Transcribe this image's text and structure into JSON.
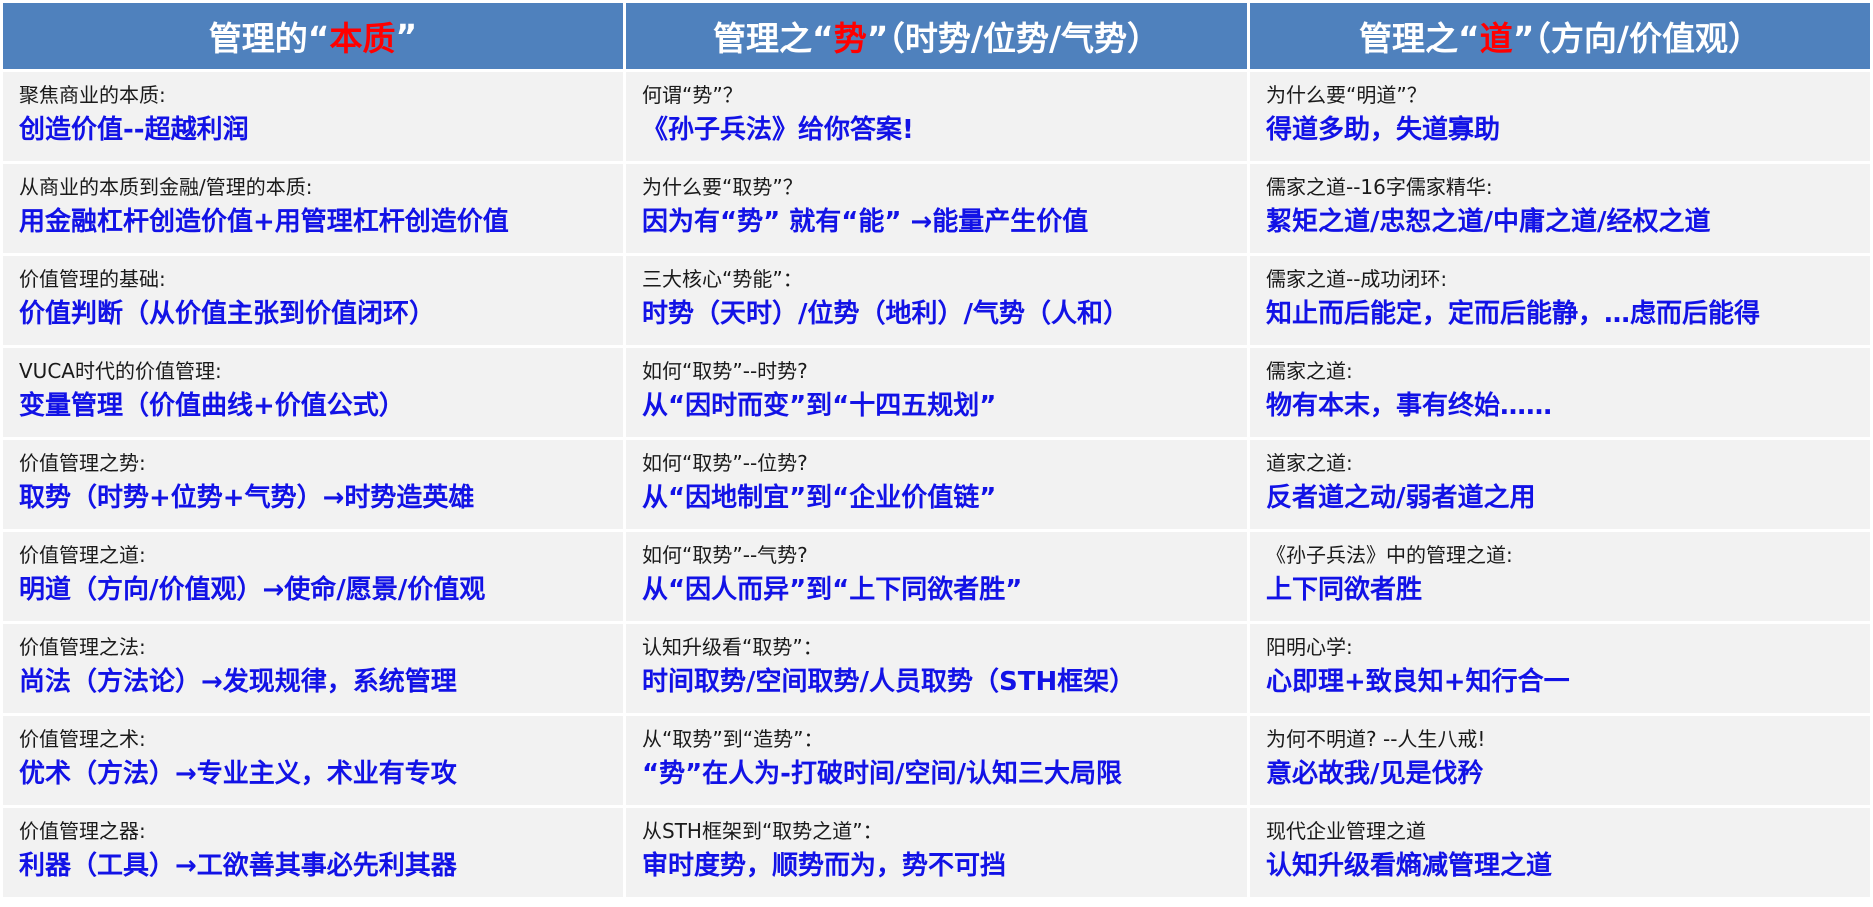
{
  "headers": [
    {
      "pre": "管理的“",
      "hl": "本质",
      "post": "”"
    },
    {
      "pre": "管理之“",
      "hl": "势",
      "post": "”（时势/位势/气势）"
    },
    {
      "pre": "管理之“",
      "hl": "道",
      "post": "”（方向/价值观）"
    }
  ],
  "colors": {
    "header_bg": "#4f81bd",
    "cell_bg": "#f2f2f2",
    "highlight": "#ff0000",
    "value_text": "#1212e6"
  },
  "rows": [
    [
      {
        "label": "聚焦商业的本质:",
        "value": "创造价值--超越利润"
      },
      {
        "label": "何谓“势”？",
        "value": "《孙子兵法》给你答案!"
      },
      {
        "label": "为什么要“明道”？",
        "value": "得道多助，失道寡助"
      }
    ],
    [
      {
        "label": "从商业的本质到金融/管理的本质:",
        "value": "用金融杠杆创造价值+用管理杠杆创造价值"
      },
      {
        "label": "为什么要“取势”？",
        "value": "因为有“势” 就有“能” →能量产生价值"
      },
      {
        "label": "儒家之道--16字儒家精华:",
        "value": "絜矩之道/忠恕之道/中庸之道/经权之道"
      }
    ],
    [
      {
        "label": "价值管理的基础:",
        "value": "价值判断（从价值主张到价值闭环）"
      },
      {
        "label": "三大核心“势能”：",
        "value": "时势（天时）/位势（地利）/气势（人和）"
      },
      {
        "label": "儒家之道--成功闭环:",
        "value": "知止而后能定，定而后能静，…虑而后能得"
      }
    ],
    [
      {
        "label": "VUCA时代的价值管理:",
        "value": "变量管理（价值曲线+价值公式）"
      },
      {
        "label": "如何“取势”--时势?",
        "value": "从“因时而变”到“十四五规划”"
      },
      {
        "label": "儒家之道:",
        "value": "物有本末，事有终始……"
      }
    ],
    [
      {
        "label": "价值管理之势:",
        "value": "取势（时势+位势+气势）→时势造英雄"
      },
      {
        "label": "如何“取势”--位势?",
        "value": "从“因地制宜”到“企业价值链”"
      },
      {
        "label": "道家之道:",
        "value": "反者道之动/弱者道之用"
      }
    ],
    [
      {
        "label": "价值管理之道:",
        "value": "明道（方向/价值观）→使命/愿景/价值观"
      },
      {
        "label": "如何“取势”--气势?",
        "value": "从“因人而异”到“上下同欲者胜”"
      },
      {
        "label": "《孙子兵法》中的管理之道:",
        "value": "上下同欲者胜"
      }
    ],
    [
      {
        "label": "价值管理之法:",
        "value": "尚法（方法论）→发现规律，系统管理"
      },
      {
        "label": "认知升级看“取势”：",
        "value": "时间取势/空间取势/人员取势（STH框架）"
      },
      {
        "label": "阳明心学:",
        "value": "心即理+致良知+知行合一"
      }
    ],
    [
      {
        "label": "价值管理之术:",
        "value": "优术（方法）→专业主义，术业有专攻"
      },
      {
        "label": "从“取势”到“造势”：",
        "value": "“势”在人为-打破时间/空间/认知三大局限"
      },
      {
        "label": "为何不明道? --人生八戒!",
        "value": "意必故我/见是伐矜"
      }
    ],
    [
      {
        "label": "价值管理之器:",
        "value": "利器（工具）→工欲善其事必先利其器"
      },
      {
        "label": "从STH框架到“取势之道”：",
        "value": "审时度势，顺势而为，势不可挡"
      },
      {
        "label": "现代企业管理之道",
        "value": "认知升级看熵减管理之道"
      }
    ]
  ]
}
